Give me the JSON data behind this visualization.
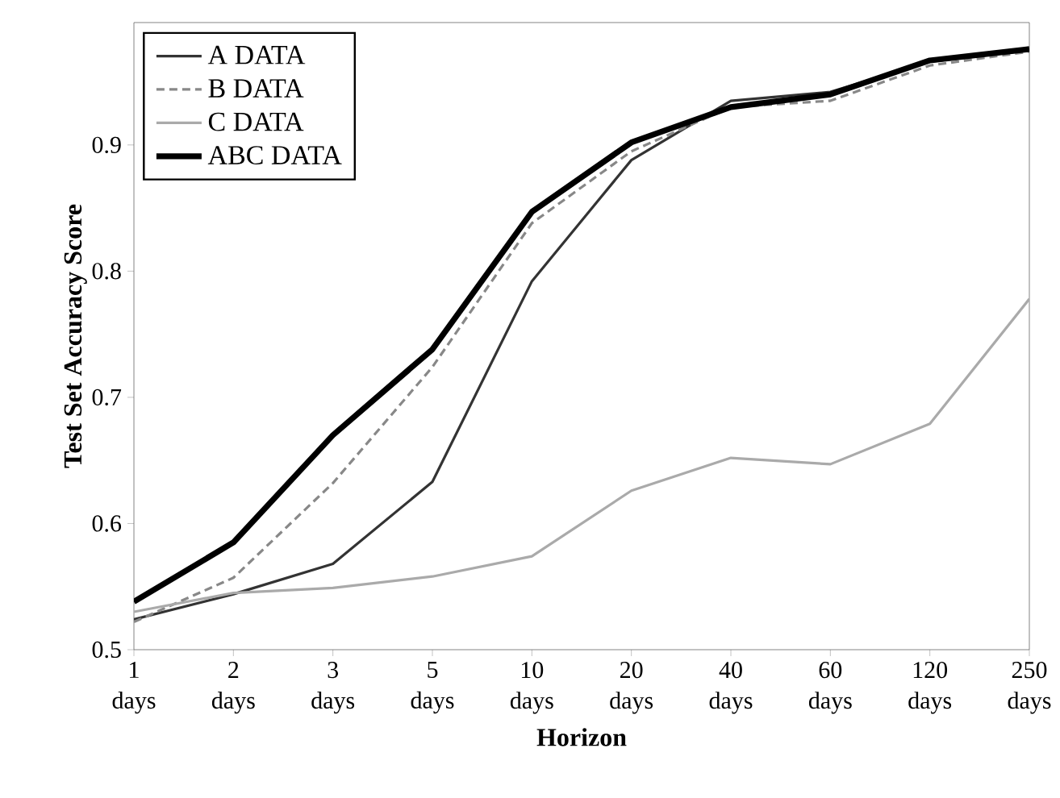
{
  "chart_data": {
    "type": "line",
    "xlabel": "Horizon",
    "ylabel": "Test Set Accuracy Score",
    "categories": [
      "1 days",
      "2 days",
      "3 days",
      "5 days",
      "10 days",
      "20 days",
      "40 days",
      "60 days",
      "120 days",
      "250 days"
    ],
    "series": [
      {
        "name": "A DATA",
        "color": "#333333",
        "values": [
          0.524,
          0.544,
          0.568,
          0.633,
          0.792,
          0.888,
          0.935,
          0.942,
          0.966,
          0.975
        ]
      },
      {
        "name": "B DATA",
        "color": "#888888",
        "line_style": "dashed",
        "values": [
          0.522,
          0.557,
          0.632,
          0.724,
          0.838,
          0.895,
          0.93,
          0.935,
          0.963,
          0.974
        ]
      },
      {
        "name": "C DATA",
        "color": "#aaaaaa",
        "values": [
          0.53,
          0.545,
          0.549,
          0.558,
          0.574,
          0.626,
          0.652,
          0.647,
          0.679,
          0.778
        ]
      },
      {
        "name": "ABC DATA",
        "color": "#000000",
        "values": [
          0.538,
          0.585,
          0.67,
          0.738,
          0.847,
          0.902,
          0.93,
          0.94,
          0.967,
          0.976
        ]
      }
    ],
    "ylim": [
      0.5,
      0.997
    ],
    "yticks": [
      0.5,
      0.6,
      0.7,
      0.8,
      0.9
    ],
    "legend": "top left",
    "grid": false,
    "line_style": "solid"
  }
}
